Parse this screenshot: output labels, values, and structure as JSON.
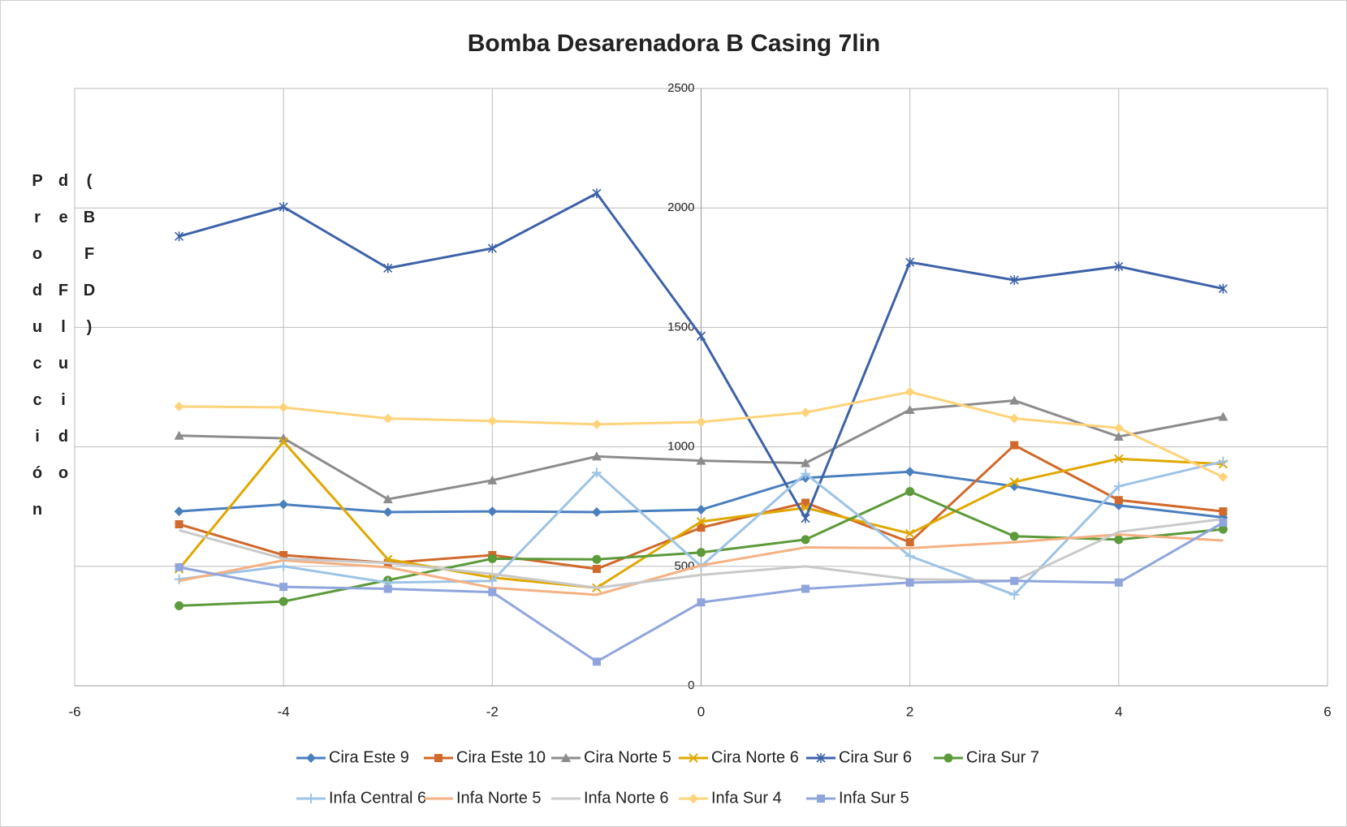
{
  "chart_data": {
    "type": "line",
    "title": "Bomba Desarenadora B Casing 7lin",
    "y_label": "Producción de Fluido (BFD)",
    "x": [
      -5,
      -4,
      -3,
      -2,
      -1,
      0,
      1,
      2,
      3,
      4,
      5
    ],
    "xlim": [
      -6,
      6
    ],
    "xticks": [
      -6,
      -4,
      -2,
      0,
      2,
      4,
      6
    ],
    "ylim": [
      0,
      2500
    ],
    "yticks": [
      0,
      500,
      1000,
      1500,
      2000,
      2500
    ],
    "grid": true,
    "legend": "bottom",
    "series": [
      {
        "name": "Cira Este 9",
        "color": "#4a7fbf",
        "marker": "diamond",
        "values": [
          730,
          759,
          727,
          730,
          727,
          737,
          870,
          896,
          835,
          755,
          705
        ]
      },
      {
        "name": "Cira Este 10",
        "color": "#d0692b",
        "marker": "square",
        "values": [
          676,
          547,
          514,
          547,
          489,
          662,
          766,
          601,
          1007,
          777,
          730
        ]
      },
      {
        "name": "Cira Norte 5",
        "color": "#8c8c8c",
        "marker": "triangle",
        "values": [
          1047,
          1036,
          781,
          860,
          960,
          942,
          932,
          1155,
          1194,
          1043,
          1126
        ]
      },
      {
        "name": "Cira Norte 6",
        "color": "#e0a800",
        "marker": "x",
        "values": [
          489,
          1022,
          529,
          453,
          410,
          687,
          745,
          637,
          853,
          950,
          928
        ]
      },
      {
        "name": "Cira Sur 6",
        "color": "#3d62a8",
        "marker": "star",
        "values": [
          1881,
          2004,
          1748,
          1831,
          2061,
          1464,
          701,
          1773,
          1698,
          1755,
          1662
        ]
      },
      {
        "name": "Cira Sur 7",
        "color": "#5c9a3a",
        "marker": "circle",
        "values": [
          335,
          353,
          442,
          532,
          529,
          558,
          612,
          813,
          626,
          612,
          655
        ]
      },
      {
        "name": "Infa Central 6",
        "color": "#9dc3e6",
        "marker": "plus",
        "values": [
          446,
          500,
          432,
          439,
          892,
          500,
          888,
          543,
          381,
          835,
          939
        ]
      },
      {
        "name": "Infa Norte 5",
        "color": "#f4b183",
        "marker": "none",
        "values": [
          439,
          525,
          496,
          410,
          381,
          504,
          579,
          576,
          601,
          633,
          608
        ]
      },
      {
        "name": "Infa Norte 6",
        "color": "#c9c9c9",
        "marker": "none",
        "values": [
          651,
          532,
          514,
          468,
          410,
          464,
          500,
          446,
          439,
          644,
          698
        ]
      },
      {
        "name": "Infa Sur 4",
        "color": "#ffd37a",
        "marker": "diamond",
        "values": [
          1169,
          1165,
          1119,
          1108,
          1094,
          1104,
          1144,
          1230,
          1119,
          1079,
          874
        ]
      },
      {
        "name": "Infa Sur 5",
        "color": "#8fa5dc",
        "marker": "square",
        "values": [
          496,
          414,
          406,
          392,
          101,
          349,
          406,
          432,
          439,
          432,
          683
        ]
      }
    ]
  }
}
